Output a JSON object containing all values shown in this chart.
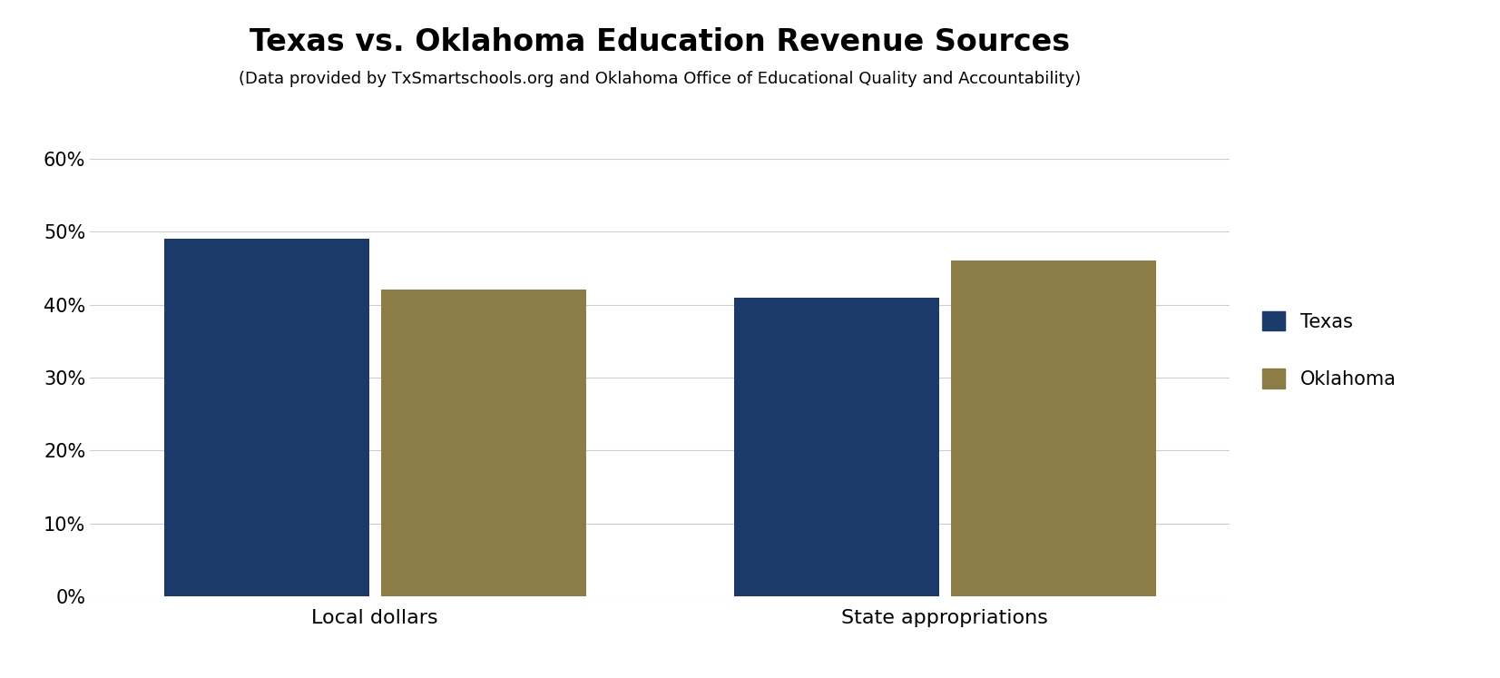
{
  "title": "Texas vs. Oklahoma Education Revenue Sources",
  "subtitle": "(Data provided by TxSmartschools.org and Oklahoma Office of Educational Quality and Accountability)",
  "categories": [
    "Local dollars",
    "State appropriations"
  ],
  "texas_values": [
    0.49,
    0.41
  ],
  "oklahoma_values": [
    0.42,
    0.46
  ],
  "texas_color": "#1b3a6b",
  "oklahoma_color": "#8b7d45",
  "ylim": [
    0,
    0.65
  ],
  "yticks": [
    0.0,
    0.1,
    0.2,
    0.3,
    0.4,
    0.5,
    0.6
  ],
  "ytick_labels": [
    "0%",
    "10%",
    "20%",
    "30%",
    "40%",
    "50%",
    "60%"
  ],
  "background_color": "#ffffff",
  "title_fontsize": 24,
  "subtitle_fontsize": 13,
  "tick_fontsize": 15,
  "legend_fontsize": 15,
  "bar_width": 0.18,
  "bar_gap": 0.01,
  "group_positions": [
    0.25,
    0.75
  ]
}
